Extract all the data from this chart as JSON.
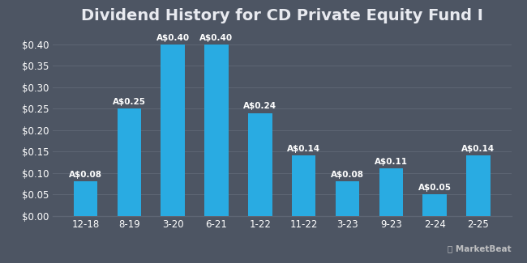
{
  "title": "Dividend History for CD Private Equity Fund I",
  "categories": [
    "12-18",
    "8-19",
    "3-20",
    "6-21",
    "1-22",
    "11-22",
    "3-23",
    "9-23",
    "2-24",
    "2-25"
  ],
  "values": [
    0.08,
    0.25,
    0.4,
    0.4,
    0.24,
    0.14,
    0.08,
    0.11,
    0.05,
    0.14
  ],
  "labels": [
    "A$0.08",
    "A$0.25",
    "A$0.40",
    "A$0.40",
    "A$0.24",
    "A$0.14",
    "A$0.08",
    "A$0.11",
    "A$0.05",
    "A$0.14"
  ],
  "bar_color": "#29ABE2",
  "background_color": "#4d5563",
  "plot_bg_color": "#4d5563",
  "grid_color": "#5d6573",
  "text_color": "#ffffff",
  "title_color": "#e8eaf0",
  "ylim": [
    0,
    0.43
  ],
  "yticks": [
    0.0,
    0.05,
    0.1,
    0.15,
    0.2,
    0.25,
    0.3,
    0.35,
    0.4
  ],
  "title_fontsize": 14,
  "label_fontsize": 7.5,
  "tick_fontsize": 8.5,
  "bar_width": 0.55,
  "watermark": "MarketBeat"
}
